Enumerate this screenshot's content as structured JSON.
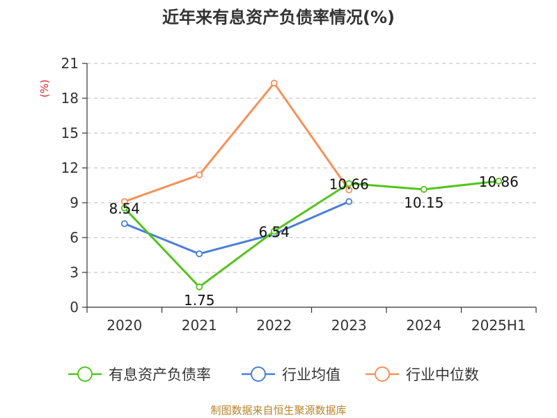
{
  "chart_data": {
    "type": "line",
    "title": "近年来有息资产负债率情况(%)",
    "ylabel": "(%)",
    "categories": [
      "2020",
      "2021",
      "2022",
      "2023",
      "2024",
      "2025H1"
    ],
    "yticks": [
      "0",
      "3",
      "6",
      "9",
      "12",
      "15",
      "18",
      "21"
    ],
    "ylim": [
      0,
      21
    ],
    "grid": true,
    "legend_position": "bottom",
    "series": [
      {
        "name": "有息资产负债率",
        "color": "#52c41a",
        "values": [
          8.54,
          1.75,
          6.54,
          10.66,
          10.15,
          10.86
        ],
        "labels": [
          "8.54",
          "1.75",
          "6.54",
          "10.66",
          "10.15",
          "10.86"
        ]
      },
      {
        "name": "行业均值",
        "color": "#4a7fd6",
        "values": [
          7.2,
          4.6,
          6.3,
          9.1,
          null,
          null
        ]
      },
      {
        "name": "行业中位数",
        "color": "#f5915a",
        "values": [
          9.1,
          11.4,
          19.3,
          10.1,
          null,
          null
        ]
      }
    ],
    "source": "制图数据来自恒生聚源数据库"
  }
}
